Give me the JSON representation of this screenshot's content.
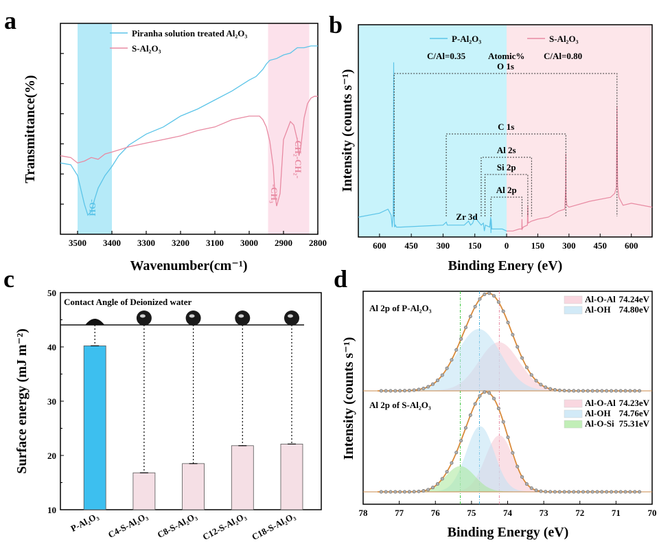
{
  "panels": {
    "a": "a",
    "b": "b",
    "c": "c",
    "d": "d"
  },
  "chart_data": [
    {
      "panel": "a",
      "type": "line",
      "xlabel": "Wavenumber(cm⁻¹)",
      "ylabel": "Transmittance(%)",
      "xlim": [
        3550,
        2800
      ],
      "x_reversed": true,
      "xticks": [
        3500,
        3400,
        3300,
        3200,
        3100,
        3000,
        2900,
        2800
      ],
      "y_ticks_shown": false,
      "series": [
        {
          "name": "Piranha solution treated Al₂O₃",
          "color": "#5bc4e8",
          "x": [
            3550,
            3520,
            3500,
            3490,
            3480,
            3470,
            3460,
            3450,
            3440,
            3420,
            3400,
            3380,
            3350,
            3300,
            3250,
            3200,
            3150,
            3100,
            3050,
            3000,
            2980,
            2960,
            2950,
            2940,
            2920,
            2900,
            2880,
            2860,
            2840,
            2820,
            2800
          ],
          "y": [
            0.32,
            0.31,
            0.25,
            0.17,
            0.09,
            0.03,
            0.05,
            0.12,
            0.18,
            0.25,
            0.3,
            0.36,
            0.42,
            0.48,
            0.52,
            0.58,
            0.62,
            0.67,
            0.72,
            0.78,
            0.8,
            0.84,
            0.87,
            0.89,
            0.9,
            0.92,
            0.93,
            0.96,
            0.96,
            0.97,
            0.97
          ]
        },
        {
          "name": "S-Al₂O₃",
          "color": "#e88aa2",
          "x": [
            3550,
            3520,
            3500,
            3480,
            3460,
            3440,
            3420,
            3400,
            3350,
            3300,
            3250,
            3200,
            3150,
            3100,
            3050,
            3000,
            2970,
            2960,
            2950,
            2940,
            2930,
            2925,
            2920,
            2910,
            2900,
            2880,
            2870,
            2860,
            2855,
            2850,
            2840,
            2830,
            2820,
            2810,
            2800
          ],
          "y": [
            0.36,
            0.35,
            0.32,
            0.33,
            0.35,
            0.34,
            0.37,
            0.38,
            0.41,
            0.43,
            0.45,
            0.47,
            0.5,
            0.52,
            0.56,
            0.58,
            0.58,
            0.56,
            0.52,
            0.44,
            0.3,
            0.15,
            0.08,
            0.15,
            0.45,
            0.55,
            0.53,
            0.45,
            0.36,
            0.4,
            0.57,
            0.65,
            0.68,
            0.69,
            0.69
          ]
        }
      ],
      "shaded_regions": [
        {
          "from": 3500,
          "to": 3400,
          "color": "#a8e6f7",
          "label": "-OH"
        },
        {
          "from": 2945,
          "to": 2825,
          "color": "#fbdce7",
          "label_1": "-CH₃",
          "label_2": "-CH₂-CH₂-"
        }
      ]
    },
    {
      "panel": "b",
      "type": "line",
      "xlabel": "Binding Enery (eV)",
      "ylabel": "Intensity (counts s⁻¹)",
      "xticks": [
        600,
        450,
        300,
        150,
        0,
        150,
        300,
        450,
        600
      ],
      "xlim_left": [
        700,
        0
      ],
      "xlim_right": [
        0,
        700
      ],
      "y_ticks_shown": false,
      "series": [
        {
          "name": "P-Al₂O₃",
          "color": "#5bc4e8",
          "side": "left",
          "x": [
            700,
            600,
            560,
            545,
            540,
            535,
            533,
            531,
            529,
            525,
            520,
            500,
            400,
            300,
            290,
            285,
            280,
            200,
            180,
            170,
            160,
            150,
            120,
            110,
            105,
            100,
            80,
            75,
            74,
            73,
            70,
            50,
            20,
            0
          ],
          "y": [
            0.1,
            0.12,
            0.14,
            0.11,
            0.05,
            0.12,
            0.88,
            0.12,
            0.05,
            0.06,
            0.05,
            0.05,
            0.055,
            0.06,
            0.07,
            0.075,
            0.06,
            0.06,
            0.08,
            0.06,
            0.07,
            0.1,
            0.06,
            0.07,
            0.03,
            0.06,
            0.05,
            0.1,
            0.02,
            0.09,
            0.04,
            0.04,
            0.04,
            0.03
          ]
        },
        {
          "name": "S-Al₂O₃",
          "color": "#e88aa2",
          "side": "right",
          "x": [
            0,
            30,
            60,
            73,
            74,
            75,
            80,
            100,
            101,
            102,
            103,
            120,
            150,
            200,
            250,
            280,
            284,
            285,
            286,
            290,
            300,
            400,
            500,
            520,
            528,
            531,
            534,
            540,
            560,
            600,
            700
          ],
          "y": [
            0.03,
            0.03,
            0.04,
            0.04,
            0.09,
            0.04,
            0.05,
            0.06,
            0.12,
            0.16,
            0.07,
            0.08,
            0.09,
            0.1,
            0.13,
            0.14,
            0.25,
            0.42,
            0.2,
            0.16,
            0.15,
            0.18,
            0.2,
            0.22,
            0.25,
            0.66,
            0.26,
            0.2,
            0.16,
            0.17,
            0.15
          ]
        }
      ],
      "annotations": {
        "ratio_left": "C/Al=0.35",
        "ratio_mid": "Atomic%",
        "ratio_right": "C/Al=0.80",
        "o1s": "O 1s",
        "c1s": "C 1s",
        "al2s": "Al 2s",
        "si2p": "Si 2p",
        "al2p": "Al 2p",
        "zr3d": "Zr 3d"
      },
      "shading": {
        "left": "#c8f3fb",
        "right": "#fde6ea"
      }
    },
    {
      "panel": "c",
      "type": "bar",
      "ylabel": "Surface energy (mJ m⁻²)",
      "ylim": [
        10,
        50
      ],
      "yticks": [
        10,
        20,
        30,
        40,
        50
      ],
      "categories": [
        "P-Al₂O₃",
        "C4-S-Al₂O₃",
        "C8-S-Al₂O₃",
        "C12-S-Al₂O₃",
        "C18-S-Al₂O₃"
      ],
      "values": [
        40.2,
        16.8,
        18.5,
        21.8,
        22.1
      ],
      "bar_colors": [
        "#3dbfef",
        "#f5dfe5",
        "#f5dfe5",
        "#f5dfe5",
        "#f5dfe5"
      ],
      "inset_title": "Contact Angle of Deionized water"
    },
    {
      "panel": "d",
      "type": "line",
      "xlabel": "Binding Energy (eV)",
      "ylabel": "Intensity (counts s⁻¹)",
      "xlim": [
        78,
        70
      ],
      "x_reversed": true,
      "xticks": [
        78,
        77,
        76,
        75,
        74,
        73,
        72,
        71,
        70
      ],
      "y_ticks_shown": false,
      "subplots": [
        {
          "title": "Al 2p of P-Al₂O₃",
          "components": [
            {
              "name": "Al-O-Al",
              "center": 74.24,
              "label": "74.24eV",
              "color": "#f7c7d3",
              "amp": 0.55,
              "sigma": 0.55
            },
            {
              "name": "Al-OH",
              "center": 74.8,
              "label": "74.80eV",
              "color": "#bfe2f5",
              "amp": 0.7,
              "sigma": 0.6
            }
          ]
        },
        {
          "title": "Al 2p of S-Al₂O₃",
          "components": [
            {
              "name": "Al-O-Al",
              "center": 74.23,
              "label": "74.23eV",
              "color": "#f7c7d3",
              "amp": 0.62,
              "sigma": 0.38
            },
            {
              "name": "Al-OH",
              "center": 74.76,
              "label": "74.76eV",
              "color": "#bfe2f5",
              "amp": 0.72,
              "sigma": 0.38
            },
            {
              "name": "Al-O-Si",
              "center": 75.31,
              "label": "75.31eV",
              "color": "#a8e89a",
              "amp": 0.28,
              "sigma": 0.4
            }
          ]
        }
      ],
      "envelope_color": "#d98a3a",
      "points_color": "#8c8c8c"
    }
  ]
}
